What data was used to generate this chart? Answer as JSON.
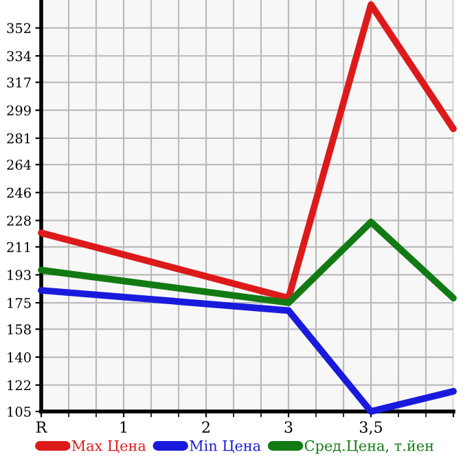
{
  "chart_data": {
    "type": "line",
    "categories": [
      "R",
      "1",
      "2",
      "3",
      "3,5",
      null
    ],
    "series": [
      {
        "name": "Max Цена",
        "color": "#dd1a1a",
        "values": [
          220,
          null,
          null,
          178,
          367,
          287
        ]
      },
      {
        "name": "Min Цена",
        "color": "#1a1add",
        "values": [
          183,
          null,
          null,
          170,
          105,
          118
        ]
      },
      {
        "name": "Сред.Цена, т.йен",
        "color": "#127a12",
        "values": [
          196,
          null,
          null,
          175,
          227,
          178
        ]
      }
    ],
    "ylim": [
      105,
      370
    ],
    "yticks": [
      105,
      122,
      140,
      158,
      175,
      193,
      211,
      228,
      246,
      264,
      281,
      299,
      317,
      334,
      352
    ],
    "grid": true,
    "legend": "bottom",
    "marker": "none",
    "line_style": "solid"
  }
}
